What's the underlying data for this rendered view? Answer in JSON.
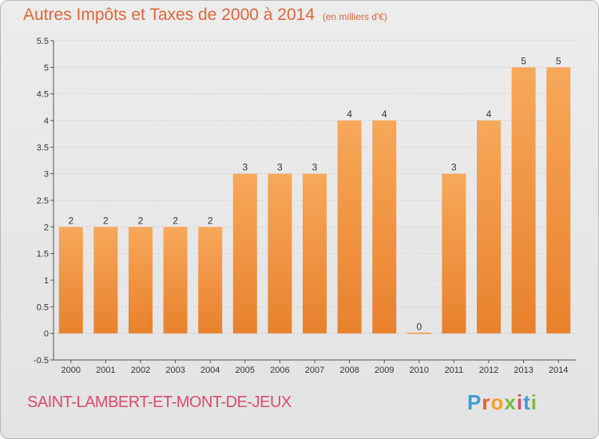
{
  "header": {
    "title": "Autres Impôts et Taxes de 2000 à 2014",
    "subtitle": "(en milliers d'€)"
  },
  "footer": {
    "commune": "SAINT-LAMBERT-ET-MONT-DE-JEUX",
    "brand_letters": [
      "P",
      "r",
      "o",
      "x",
      "i",
      "t",
      "i"
    ],
    "brand_colors": [
      "#3b9fd8",
      "#e95f2a",
      "#f3a21d",
      "#7dbb42",
      "#d94c6d",
      "#3b9fd8",
      "#7dbb42"
    ]
  },
  "colors": {
    "title": "#e0653a",
    "bar_light": "#f7a85a",
    "bar_dark": "#e8812c",
    "axis": "#555555",
    "grid": "#c9c9c9"
  },
  "chart_data": {
    "type": "bar",
    "categories": [
      "2000",
      "2001",
      "2002",
      "2003",
      "2004",
      "2005",
      "2006",
      "2007",
      "2008",
      "2009",
      "2010",
      "2011",
      "2012",
      "2013",
      "2014"
    ],
    "values": [
      2,
      2,
      2,
      2,
      2,
      3,
      3,
      3,
      4,
      4,
      0,
      3,
      4,
      5,
      5
    ],
    "data_labels": [
      "2",
      "2",
      "2",
      "2",
      "2",
      "3",
      "3",
      "3",
      "4",
      "4",
      "0",
      "3",
      "4",
      "5",
      "5"
    ],
    "ylim": [
      -0.5,
      5.5
    ],
    "yticks": [
      -0.5,
      0,
      0.5,
      1,
      1.5,
      2,
      2.5,
      3,
      3.5,
      4,
      4.5,
      5,
      5.5
    ],
    "ytick_labels": [
      "-0.5",
      "0",
      "0.5",
      "1",
      "1.5",
      "2",
      "2.5",
      "3",
      "3.5",
      "4",
      "4.5",
      "5",
      "5.5"
    ],
    "grid": true,
    "xlabel": "",
    "ylabel": ""
  }
}
